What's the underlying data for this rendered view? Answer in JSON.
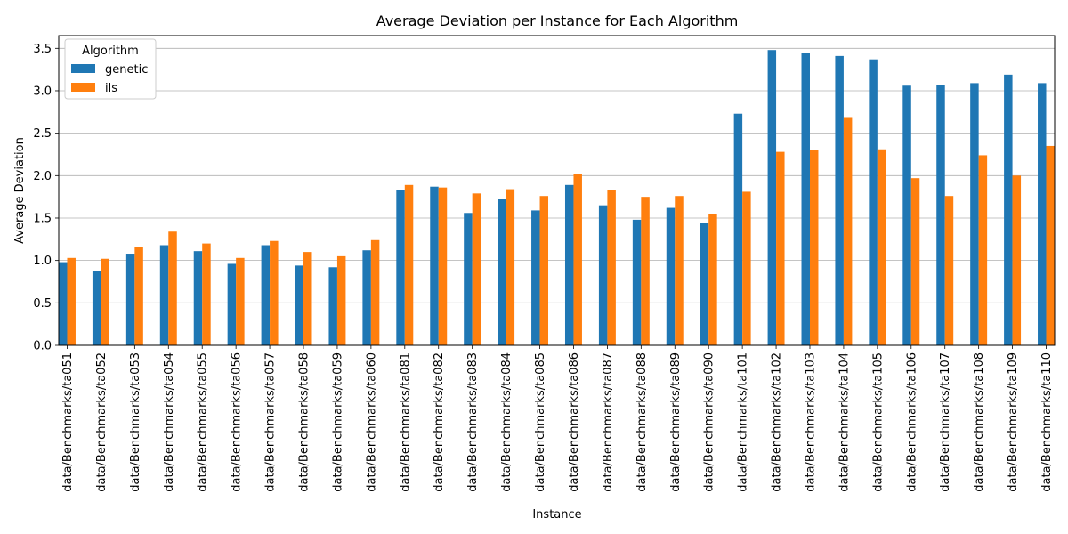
{
  "chart_data": {
    "type": "bar",
    "title": "Average Deviation per Instance for Each Algorithm",
    "xlabel": "Instance",
    "ylabel": "Average Deviation",
    "ylim": [
      0,
      3.65
    ],
    "yticks": [
      "0.0",
      "0.5",
      "1.0",
      "1.5",
      "2.0",
      "2.5",
      "3.0",
      "3.5"
    ],
    "grid": "y",
    "legend": {
      "title": "Algorithm",
      "placement": "top-left"
    },
    "categories": [
      "data/Benchmarks/ta051",
      "data/Benchmarks/ta052",
      "data/Benchmarks/ta053",
      "data/Benchmarks/ta054",
      "data/Benchmarks/ta055",
      "data/Benchmarks/ta056",
      "data/Benchmarks/ta057",
      "data/Benchmarks/ta058",
      "data/Benchmarks/ta059",
      "data/Benchmarks/ta060",
      "data/Benchmarks/ta081",
      "data/Benchmarks/ta082",
      "data/Benchmarks/ta083",
      "data/Benchmarks/ta084",
      "data/Benchmarks/ta085",
      "data/Benchmarks/ta086",
      "data/Benchmarks/ta087",
      "data/Benchmarks/ta088",
      "data/Benchmarks/ta089",
      "data/Benchmarks/ta090",
      "data/Benchmarks/ta101",
      "data/Benchmarks/ta102",
      "data/Benchmarks/ta103",
      "data/Benchmarks/ta104",
      "data/Benchmarks/ta105",
      "data/Benchmarks/ta106",
      "data/Benchmarks/ta107",
      "data/Benchmarks/ta108",
      "data/Benchmarks/ta109",
      "data/Benchmarks/ta110"
    ],
    "series": [
      {
        "name": "genetic",
        "color": "#1f77b4",
        "values": [
          0.98,
          0.88,
          1.08,
          1.18,
          1.11,
          0.96,
          1.18,
          0.94,
          0.92,
          1.12,
          1.83,
          1.87,
          1.56,
          1.72,
          1.59,
          1.89,
          1.65,
          1.48,
          1.62,
          1.44,
          2.73,
          3.48,
          3.45,
          3.41,
          3.37,
          3.06,
          3.07,
          3.09,
          3.19,
          3.09
        ]
      },
      {
        "name": "ils",
        "color": "#ff7f0e",
        "values": [
          1.03,
          1.02,
          1.16,
          1.34,
          1.2,
          1.03,
          1.23,
          1.1,
          1.05,
          1.24,
          1.89,
          1.86,
          1.79,
          1.84,
          1.76,
          2.02,
          1.83,
          1.75,
          1.76,
          1.55,
          1.81,
          2.28,
          2.3,
          2.68,
          2.31,
          1.97,
          1.76,
          2.24,
          2.0,
          2.35
        ]
      }
    ]
  }
}
